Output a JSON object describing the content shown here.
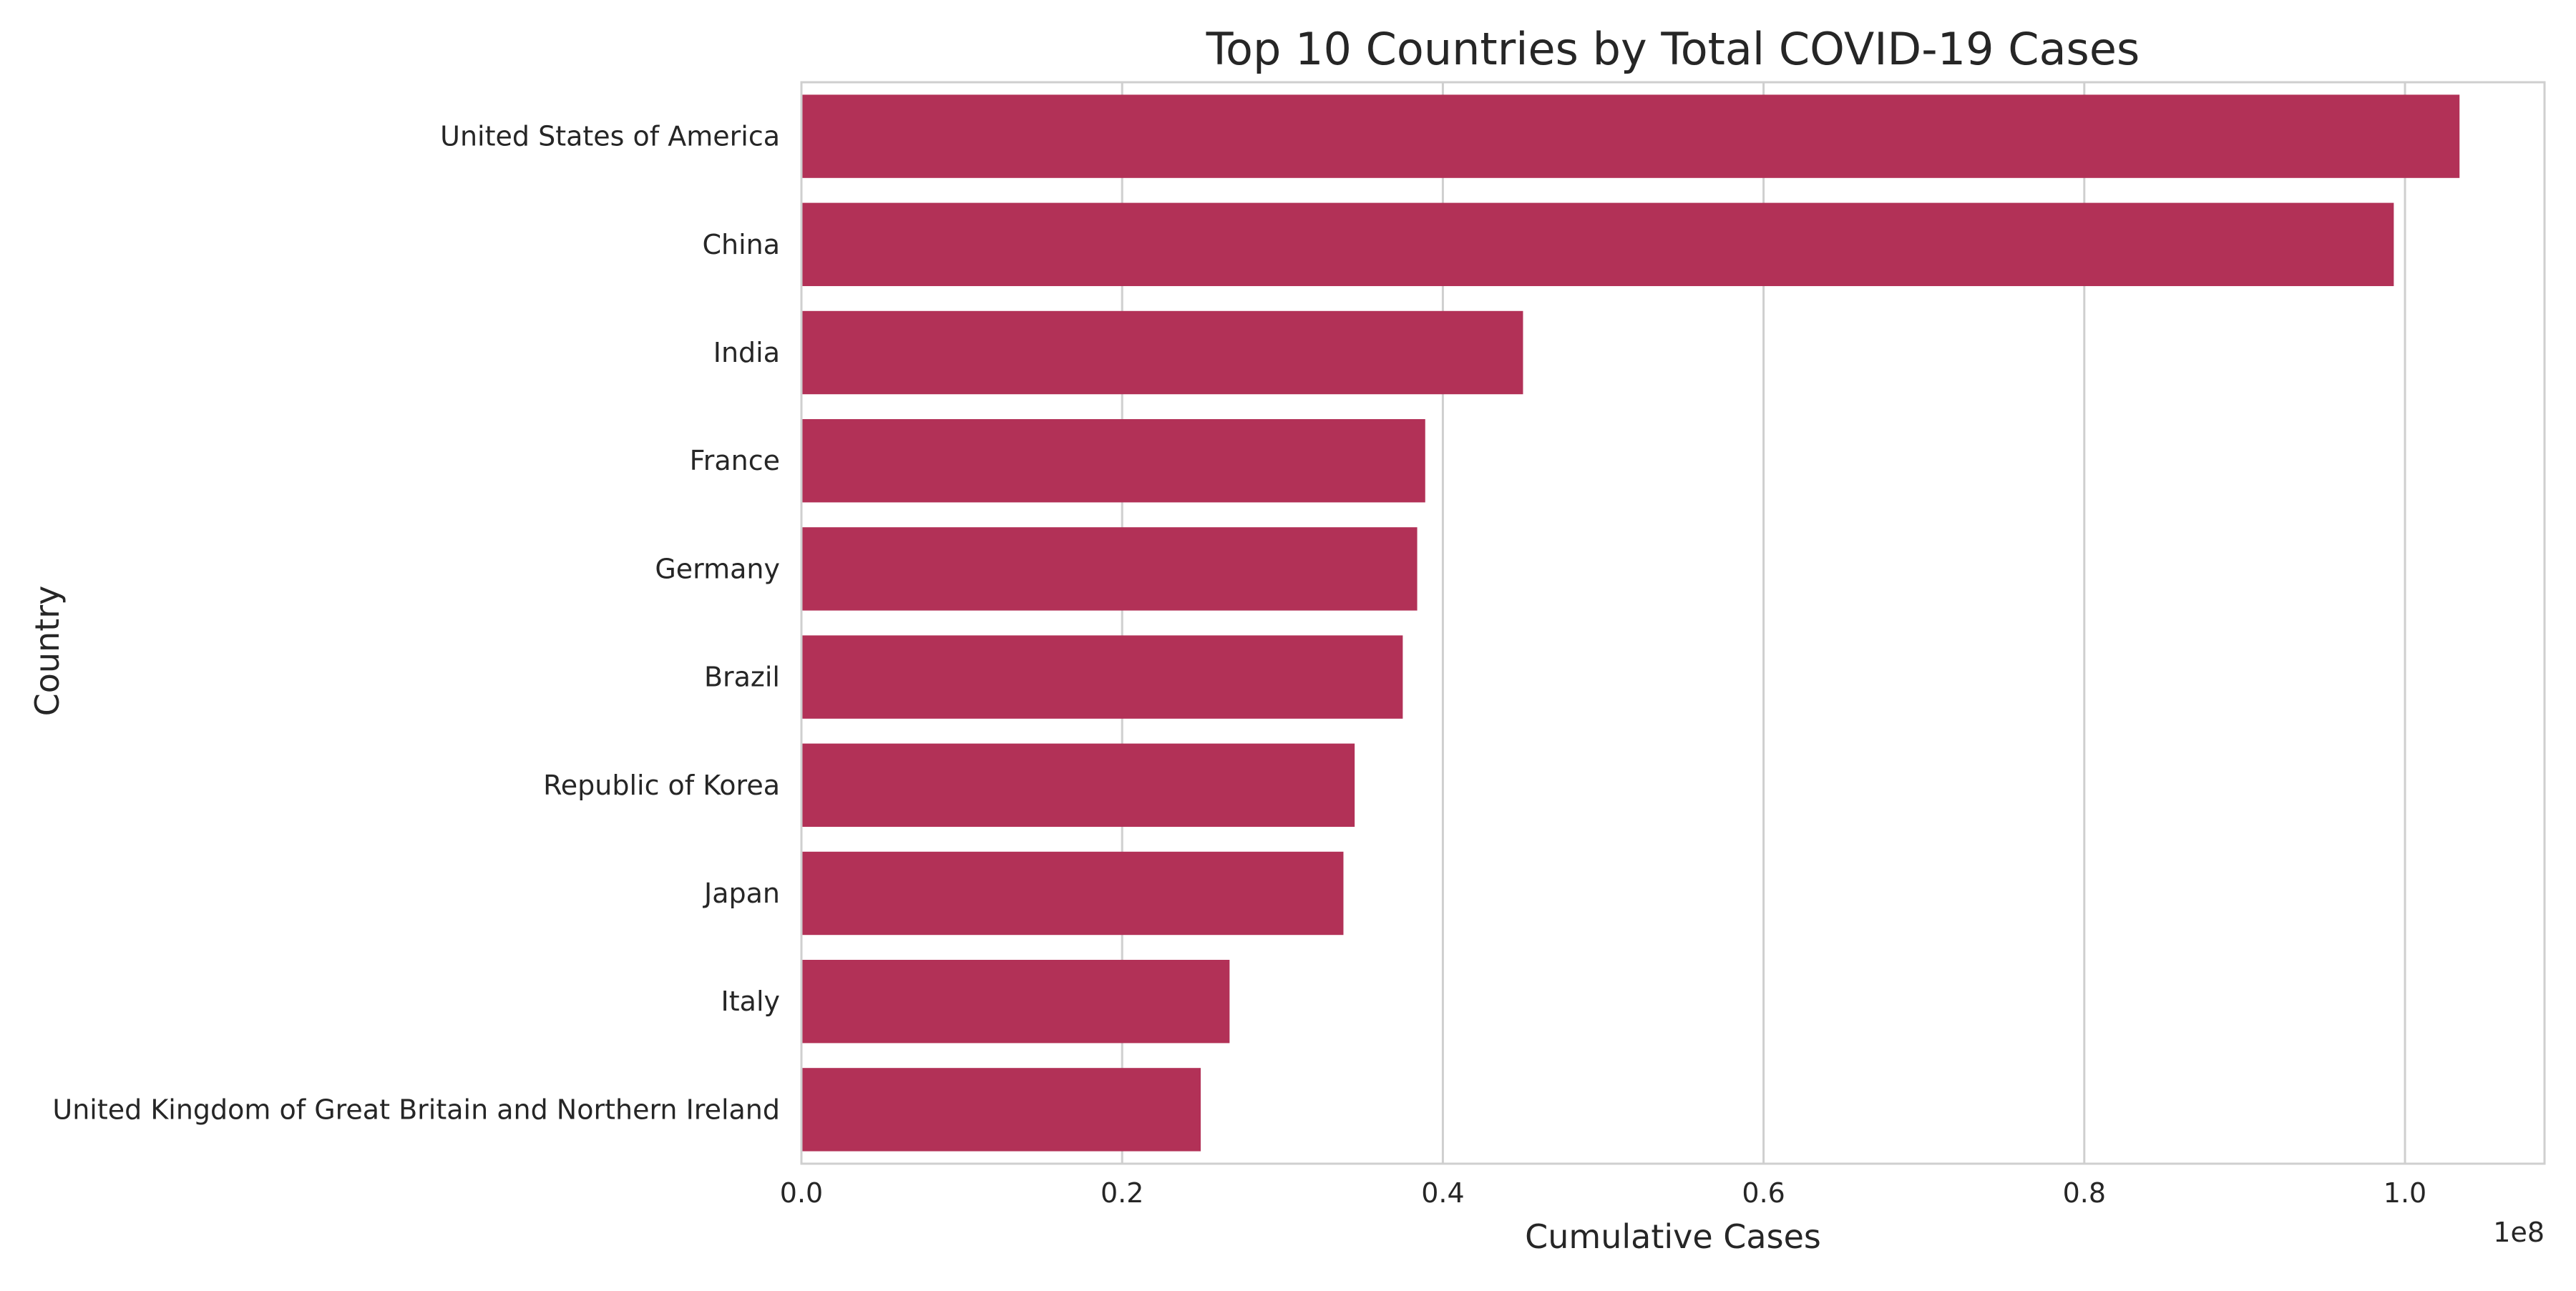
{
  "chart_data": {
    "type": "bar",
    "orientation": "horizontal",
    "title": "Top 10 Countries by Total COVID-19 Cases",
    "xlabel": "Cumulative Cases",
    "ylabel": "Country",
    "x_offset_label": "1e8",
    "categories": [
      "United States of America",
      "China",
      "India",
      "France",
      "Germany",
      "Brazil",
      "Republic of Korea",
      "Japan",
      "Italy",
      "United Kingdom of Great Britain and Northern Ireland"
    ],
    "values": [
      103400000,
      99300000,
      45000000,
      38900000,
      38400000,
      37500000,
      34500000,
      33800000,
      26700000,
      24900000
    ],
    "xlim": [
      0,
      108700000
    ],
    "xticks": [
      0,
      20000000,
      40000000,
      60000000,
      80000000,
      100000000
    ],
    "xtick_labels": [
      "0.0",
      "0.2",
      "0.4",
      "0.6",
      "0.8",
      "1.0"
    ],
    "grid": true,
    "bar_color": "#b23157",
    "grid_color": "#cfcfcf"
  }
}
